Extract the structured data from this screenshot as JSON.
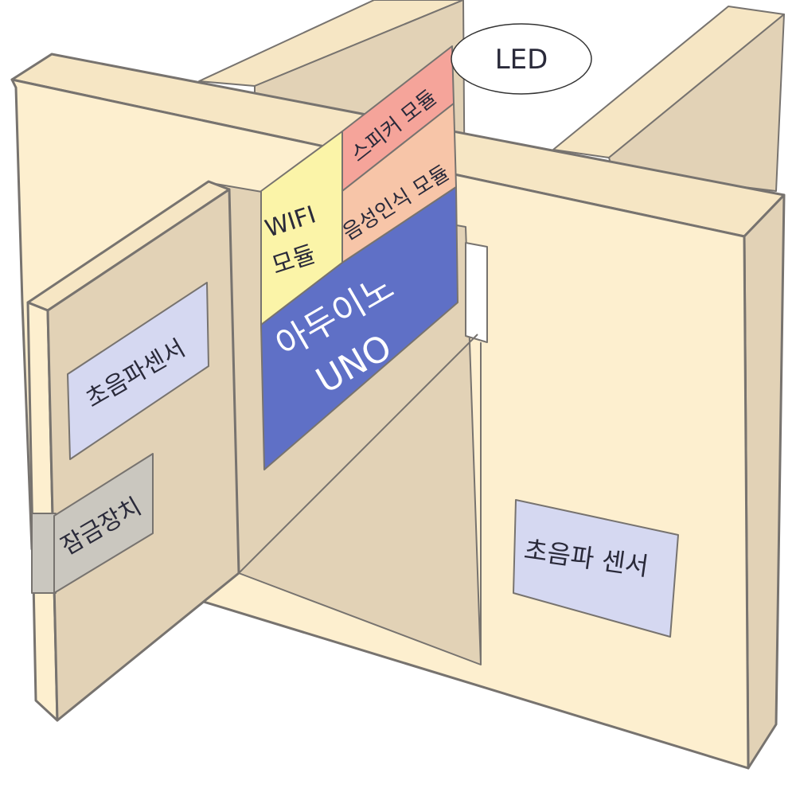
{
  "colors": {
    "wood_front": "#fdefcf",
    "wood_shade": "#e2d2b6",
    "wood_top": "#f6e6c4",
    "edge": "#77736f",
    "sensor_fill": "#d5d8f1",
    "lock_fill": "#cac7bf",
    "wifi_fill": "#fbf4a8",
    "speaker_fill": "#f5a49a",
    "voice_fill": "#f7c5a8",
    "arduino_fill": "#5f70c6"
  },
  "diagram": {
    "led_label": "LED",
    "speaker_module": "스피커 모듈",
    "voice_module": "음성인식 모듈",
    "wifi_line1": "WIFI",
    "wifi_line2": "모듈",
    "arduino_line1": "아두이노",
    "arduino_line2": "UNO",
    "left_sensor": "초음파센서",
    "lock_device": "잠금장치",
    "right_sensor": "초음파 센서"
  }
}
